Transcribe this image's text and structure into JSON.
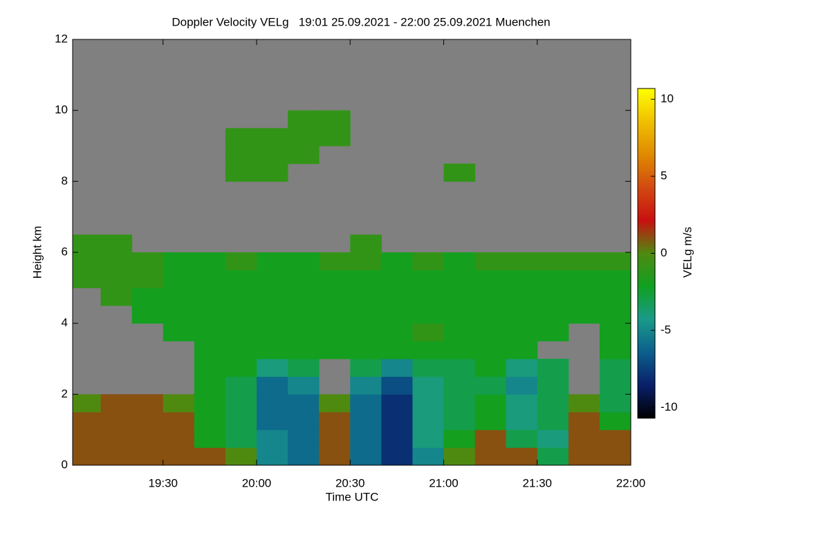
{
  "chart_data": {
    "type": "heatmap",
    "title": "Doppler Velocity VELg   19:01 25.09.2021 - 22:00 25.09.2021 Muenchen",
    "xlabel": "Time UTC",
    "ylabel": "Height km",
    "xlim": [
      19.0167,
      22.0
    ],
    "ylim": [
      0,
      12
    ],
    "xticks": [
      {
        "value": 19.5,
        "label": "19:30"
      },
      {
        "value": 20,
        "label": "20:00"
      },
      {
        "value": 20.5,
        "label": "20:30"
      },
      {
        "value": 21,
        "label": "21:00"
      },
      {
        "value": 21.5,
        "label": "21:30"
      },
      {
        "value": 22,
        "label": "22:00"
      }
    ],
    "yticks": [
      0,
      2,
      4,
      6,
      8,
      10,
      12
    ],
    "null_color": "#808080",
    "xbins": [
      19.0167,
      19.1667,
      19.3333,
      19.5,
      19.6667,
      19.8333,
      20,
      20.1667,
      20.3333,
      20.5,
      20.6667,
      20.8333,
      21,
      21.1667,
      21.3333,
      21.5,
      21.6667,
      21.8333,
      22
    ],
    "ybins": [
      0,
      0.5,
      1,
      1.5,
      2,
      2.5,
      3,
      3.5,
      4,
      4.5,
      5,
      5.5,
      6,
      6.5,
      7,
      7.5,
      8,
      8.5,
      9,
      9.5,
      10,
      10.5,
      11,
      11.5,
      12
    ],
    "z": [
      [
        1,
        1,
        1,
        1,
        1,
        0,
        -5,
        -6,
        1,
        -6,
        -8,
        -5,
        0,
        1,
        1,
        -3,
        1,
        1
      ],
      [
        1,
        1,
        1,
        1,
        -2,
        -3,
        -5,
        -6,
        1,
        -6,
        -8,
        -4,
        -2,
        1,
        -3,
        -4,
        1,
        1
      ],
      [
        1,
        1,
        1,
        1,
        -2,
        -3,
        -6,
        -6,
        1,
        -6,
        -8,
        -4,
        -3,
        -2,
        -4,
        -3,
        1,
        -2
      ],
      [
        0,
        1,
        1,
        0,
        -2,
        -3,
        -6,
        -6,
        0,
        -6,
        -8,
        -4,
        -3,
        -2,
        -4,
        -3,
        0,
        -3
      ],
      [
        null,
        null,
        null,
        null,
        -2,
        -3,
        -6,
        -5,
        null,
        -5,
        -7,
        -4,
        -3,
        -3,
        -5,
        -3,
        null,
        -3
      ],
      [
        null,
        null,
        null,
        null,
        -2,
        -2,
        -4,
        -3,
        null,
        -3,
        -5,
        -3,
        -3,
        -2,
        -4,
        -3,
        null,
        -3
      ],
      [
        null,
        null,
        null,
        null,
        -2,
        -2,
        -2,
        -2,
        -2,
        -2,
        -2,
        -2,
        -2,
        -2,
        -2,
        null,
        null,
        -2
      ],
      [
        null,
        null,
        null,
        -2,
        -2,
        -2,
        -2,
        -2,
        -2,
        -2,
        -2,
        -1,
        -2,
        -2,
        -2,
        -2,
        null,
        -2
      ],
      [
        null,
        null,
        -2,
        -2,
        -2,
        -2,
        -2,
        -2,
        -2,
        -2,
        -2,
        -2,
        -2,
        -2,
        -2,
        -2,
        -2,
        -2
      ],
      [
        null,
        -1,
        -2,
        -2,
        -2,
        -2,
        -2,
        -2,
        -2,
        -2,
        -2,
        -2,
        -2,
        -2,
        -2,
        -2,
        -2,
        -2
      ],
      [
        -1,
        -1,
        -1,
        -2,
        -2,
        -2,
        -2,
        -2,
        -2,
        -2,
        -2,
        -2,
        -2,
        -2,
        -2,
        -2,
        -2,
        -2
      ],
      [
        -1,
        -1,
        -1,
        -2,
        -2,
        -1,
        -2,
        -2,
        -1,
        -1,
        -2,
        -1,
        -2,
        -1,
        -1,
        -1,
        -1,
        -1
      ],
      [
        -1,
        -1,
        null,
        null,
        null,
        null,
        null,
        null,
        null,
        -1,
        null,
        null,
        null,
        null,
        null,
        null,
        null,
        null
      ],
      [
        null,
        null,
        null,
        null,
        null,
        null,
        null,
        null,
        null,
        null,
        null,
        null,
        null,
        null,
        null,
        null,
        null,
        null
      ],
      [
        null,
        null,
        null,
        null,
        null,
        null,
        null,
        null,
        null,
        null,
        null,
        null,
        null,
        null,
        null,
        null,
        null,
        null
      ],
      [
        null,
        null,
        null,
        null,
        null,
        null,
        null,
        null,
        null,
        null,
        null,
        null,
        null,
        null,
        null,
        null,
        null,
        null
      ],
      [
        null,
        null,
        null,
        null,
        null,
        -1,
        -1,
        null,
        null,
        null,
        null,
        null,
        -1,
        null,
        null,
        null,
        null,
        null
      ],
      [
        null,
        null,
        null,
        null,
        null,
        -1,
        -1,
        -1,
        null,
        null,
        null,
        null,
        null,
        null,
        null,
        null,
        null,
        null
      ],
      [
        null,
        null,
        null,
        null,
        null,
        -1,
        -1,
        -1,
        -1,
        null,
        null,
        null,
        null,
        null,
        null,
        null,
        null,
        null
      ],
      [
        null,
        null,
        null,
        null,
        null,
        null,
        null,
        -1,
        -1,
        null,
        null,
        null,
        null,
        null,
        null,
        null,
        null,
        null
      ],
      [
        null,
        null,
        null,
        null,
        null,
        null,
        null,
        null,
        null,
        null,
        null,
        null,
        null,
        null,
        null,
        null,
        null,
        null
      ],
      [
        null,
        null,
        null,
        null,
        null,
        null,
        null,
        null,
        null,
        null,
        null,
        null,
        null,
        null,
        null,
        null,
        null,
        null
      ],
      [
        null,
        null,
        null,
        null,
        null,
        null,
        null,
        null,
        null,
        null,
        null,
        null,
        null,
        null,
        null,
        null,
        null,
        null
      ],
      [
        null,
        null,
        null,
        null,
        null,
        null,
        null,
        null,
        null,
        null,
        null,
        null,
        null,
        null,
        null,
        null,
        null,
        null
      ]
    ],
    "colorbar": {
      "label": "VELg m/s",
      "lim": [
        -10.7,
        10.7
      ],
      "ticks": [
        -10,
        -5,
        0,
        5,
        10
      ],
      "colors": [
        "#000000",
        "#0a1f6a",
        "#0b5f8c",
        "#1a9a8a",
        "#10a020",
        "#4f8a10",
        "#c81010",
        "#d24a10",
        "#e08a00",
        "#f0c000",
        "#ffff00"
      ]
    }
  }
}
